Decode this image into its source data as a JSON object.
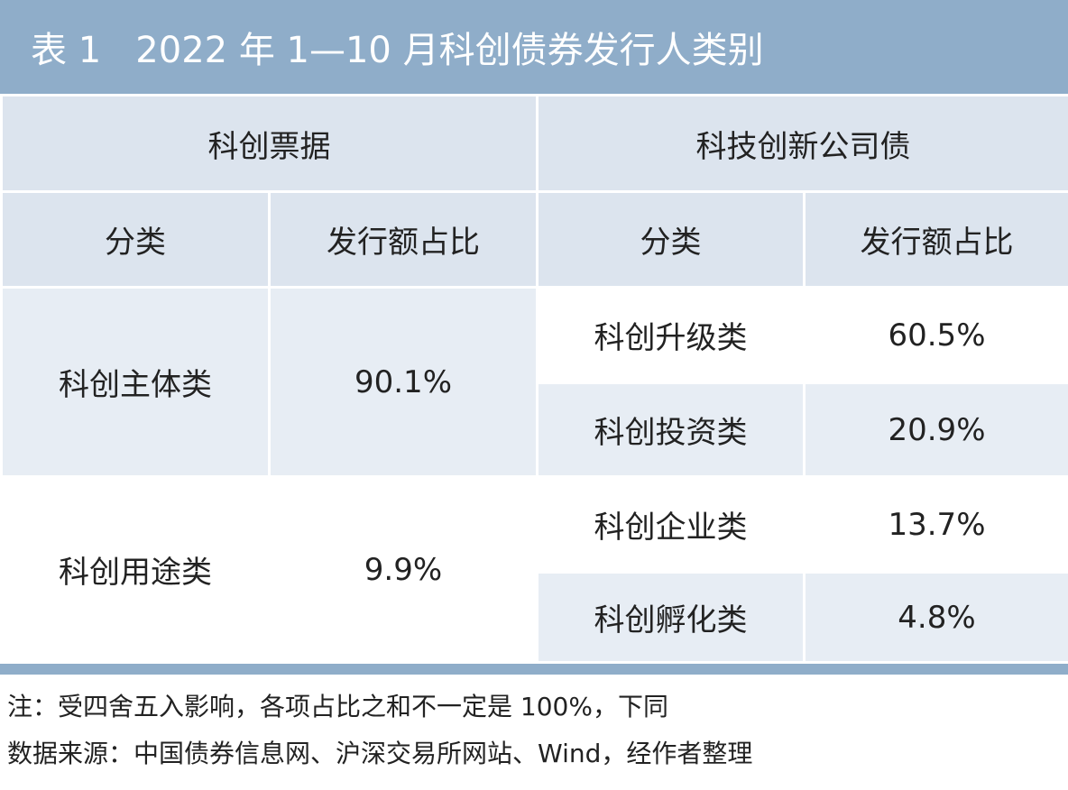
{
  "title": "表 1   2022 年 1—10 月科创债券发行人类别",
  "group_headers": [
    "科创票据",
    "科技创新公司债"
  ],
  "col_headers": [
    "分类",
    "发行额占比",
    "分类",
    "发行额占比"
  ],
  "left_rows": [
    {
      "category": "科创主体类",
      "share": "90.1%"
    },
    {
      "category": "科创用途类",
      "share": "9.9%"
    }
  ],
  "right_rows": [
    {
      "category": "科创升级类",
      "share": "60.5%"
    },
    {
      "category": "科创投资类",
      "share": "20.9%"
    },
    {
      "category": "科创企业类",
      "share": "13.7%"
    },
    {
      "category": "科创孵化类",
      "share": "4.8%"
    }
  ],
  "notes": {
    "note": "注：受四舍五入影响，各项占比之和不一定是 100%，下同",
    "source": "数据来源：中国债券信息网、沪深交易所网站、Wind，经作者整理"
  },
  "colors": {
    "title_bar": "#8fadc9",
    "header_bg": "#dce4ee",
    "band_bg": "#e7edf4"
  }
}
